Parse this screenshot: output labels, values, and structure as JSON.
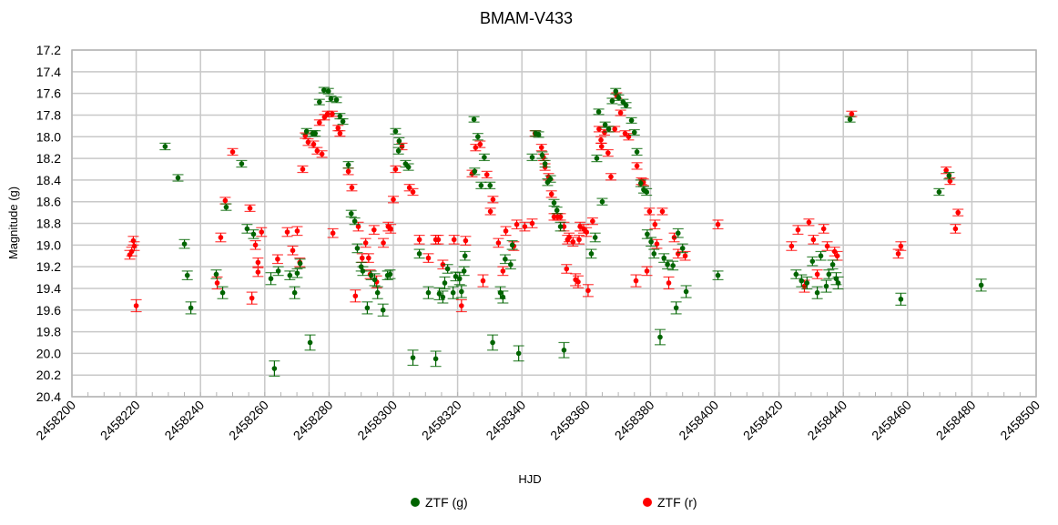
{
  "chart_data": {
    "type": "scatter",
    "title": "BMAM-V433",
    "xlabel": "HJD",
    "ylabel": "Magnitude (g)",
    "xlim": [
      2458200,
      2458500
    ],
    "ylim": [
      17.2,
      20.4
    ],
    "y_inverted": true,
    "x_major_step": 20,
    "x_minor_step": 5,
    "y_major_step": 0.2,
    "grid": true,
    "legend": "bottom-center",
    "x_base": 2458200,
    "x_ticks": [
      "2458200",
      "2458220",
      "2458240",
      "2458260",
      "2458280",
      "2458300",
      "2458320",
      "2458340",
      "2458360",
      "2458380",
      "2458400",
      "2458420",
      "2458440",
      "2458460",
      "2458480",
      "2458500"
    ],
    "y_ticks": [
      "17.2",
      "17.4",
      "17.6",
      "17.8",
      "18.0",
      "18.2",
      "18.4",
      "18.6",
      "18.8",
      "19.0",
      "19.2",
      "19.4",
      "19.6",
      "19.8",
      "20.0",
      "20.2",
      "20.4"
    ],
    "series": [
      {
        "name": "ZTF (g)",
        "color": "#006400",
        "points_note": "x = HJD - x_base, y = magnitude",
        "points": [
          [
            29.0,
            18.09
          ],
          [
            33.0,
            18.38
          ],
          [
            35.0,
            18.99
          ],
          [
            35.9,
            19.28
          ],
          [
            37.0,
            19.58
          ],
          [
            44.9,
            19.27
          ],
          [
            46.9,
            19.44
          ],
          [
            48.0,
            18.65
          ],
          [
            52.8,
            18.25
          ],
          [
            54.5,
            18.85
          ],
          [
            56.5,
            18.9
          ],
          [
            61.9,
            19.31
          ],
          [
            63.0,
            20.14
          ],
          [
            64.2,
            19.24
          ],
          [
            67.8,
            19.28
          ],
          [
            69.3,
            19.44
          ],
          [
            70.1,
            19.26
          ],
          [
            71.0,
            19.17
          ],
          [
            74.1,
            19.9
          ],
          [
            73.0,
            17.95
          ],
          [
            74.9,
            17.97
          ],
          [
            75.7,
            17.97
          ],
          [
            77.0,
            17.68
          ],
          [
            78.4,
            17.57
          ],
          [
            79.8,
            17.58
          ],
          [
            80.6,
            17.65
          ],
          [
            82.3,
            17.66
          ],
          [
            83.4,
            17.81
          ],
          [
            84.3,
            17.86
          ],
          [
            86.0,
            18.26
          ],
          [
            86.9,
            18.71
          ],
          [
            88.0,
            18.78
          ],
          [
            88.8,
            19.03
          ],
          [
            90.0,
            19.2
          ],
          [
            90.5,
            19.24
          ],
          [
            91.9,
            19.58
          ],
          [
            93.1,
            19.28
          ],
          [
            94.2,
            19.32
          ],
          [
            95.1,
            19.44
          ],
          [
            96.8,
            19.6
          ],
          [
            98.2,
            19.28
          ],
          [
            99.0,
            19.27
          ],
          [
            100.7,
            17.95
          ],
          [
            101.6,
            18.13
          ],
          [
            101.8,
            18.04
          ],
          [
            103.8,
            18.25
          ],
          [
            104.7,
            18.28
          ],
          [
            106.1,
            20.04
          ],
          [
            108.1,
            19.08
          ],
          [
            110.9,
            19.44
          ],
          [
            113.2,
            20.05
          ],
          [
            114.3,
            19.45
          ],
          [
            115.4,
            19.48
          ],
          [
            116.0,
            19.35
          ],
          [
            116.9,
            19.22
          ],
          [
            118.6,
            19.44
          ],
          [
            119.4,
            19.29
          ],
          [
            120.6,
            19.31
          ],
          [
            121.2,
            19.43
          ],
          [
            122.0,
            19.24
          ],
          [
            122.3,
            19.1
          ],
          [
            125.1,
            17.84
          ],
          [
            126.3,
            18.0
          ],
          [
            128.3,
            18.19
          ],
          [
            125.3,
            18.32
          ],
          [
            127.3,
            18.45
          ],
          [
            130.1,
            18.45
          ],
          [
            130.9,
            19.9
          ],
          [
            133.3,
            19.44
          ],
          [
            134.1,
            19.48
          ],
          [
            134.8,
            19.13
          ],
          [
            136.5,
            19.18
          ],
          [
            137.0,
            19.0
          ],
          [
            139.0,
            20.0
          ],
          [
            143.2,
            18.19
          ],
          [
            144.3,
            17.97
          ],
          [
            145.2,
            17.98
          ],
          [
            146.3,
            18.17
          ],
          [
            147.2,
            18.25
          ],
          [
            148.0,
            18.42
          ],
          [
            148.9,
            18.39
          ],
          [
            150.0,
            18.61
          ],
          [
            150.9,
            18.68
          ],
          [
            152.0,
            18.83
          ],
          [
            153.1,
            19.97
          ],
          [
            161.6,
            19.08
          ],
          [
            162.8,
            18.93
          ],
          [
            163.3,
            18.2
          ],
          [
            163.9,
            17.77
          ],
          [
            165.0,
            18.6
          ],
          [
            165.9,
            17.89
          ],
          [
            167.0,
            17.93
          ],
          [
            168.1,
            17.67
          ],
          [
            169.2,
            17.58
          ],
          [
            170.1,
            17.64
          ],
          [
            171.5,
            17.68
          ],
          [
            172.4,
            17.71
          ],
          [
            174.1,
            17.85
          ],
          [
            175.0,
            17.96
          ],
          [
            175.8,
            18.14
          ],
          [
            177.0,
            18.43
          ],
          [
            177.9,
            18.49
          ],
          [
            178.8,
            18.51
          ],
          [
            179.0,
            18.9
          ],
          [
            180.2,
            18.97
          ],
          [
            181.1,
            19.08
          ],
          [
            183.0,
            19.85
          ],
          [
            184.2,
            19.12
          ],
          [
            185.3,
            19.18
          ],
          [
            187.0,
            19.19
          ],
          [
            188.0,
            19.58
          ],
          [
            188.6,
            18.89
          ],
          [
            190.0,
            19.03
          ],
          [
            191.1,
            19.43
          ],
          [
            201.0,
            19.28
          ],
          [
            225.3,
            19.27
          ],
          [
            227.0,
            19.33
          ],
          [
            228.7,
            19.35
          ],
          [
            230.4,
            19.15
          ],
          [
            231.9,
            19.44
          ],
          [
            233.0,
            19.1
          ],
          [
            234.7,
            19.38
          ],
          [
            235.5,
            19.27
          ],
          [
            236.7,
            19.18
          ],
          [
            237.8,
            19.31
          ],
          [
            238.4,
            19.35
          ],
          [
            242.1,
            17.84
          ],
          [
            257.9,
            19.5
          ],
          [
            269.8,
            18.51
          ],
          [
            272.9,
            18.36
          ],
          [
            282.9,
            19.37
          ]
        ]
      },
      {
        "name": "ZTF (r)",
        "color": "#ff0000",
        "points_note": "x = HJD - x_base, y = magnitude",
        "points": [
          [
            18.0,
            19.09
          ],
          [
            18.6,
            19.06
          ],
          [
            19.4,
            19.01
          ],
          [
            19.1,
            18.96
          ],
          [
            20.0,
            19.56
          ],
          [
            46.3,
            18.93
          ],
          [
            45.2,
            19.35
          ],
          [
            47.7,
            18.59
          ],
          [
            50.0,
            18.14
          ],
          [
            55.4,
            18.66
          ],
          [
            56.0,
            19.49
          ],
          [
            57.1,
            19.0
          ],
          [
            57.9,
            19.25
          ],
          [
            57.9,
            19.16
          ],
          [
            59.0,
            18.88
          ],
          [
            64.0,
            19.13
          ],
          [
            67.0,
            18.88
          ],
          [
            68.7,
            19.05
          ],
          [
            70.1,
            18.87
          ],
          [
            70.9,
            19.16
          ],
          [
            71.8,
            18.3
          ],
          [
            72.6,
            17.99
          ],
          [
            73.5,
            18.05
          ],
          [
            75.2,
            18.07
          ],
          [
            76.3,
            18.13
          ],
          [
            77.8,
            18.16
          ],
          [
            77.0,
            17.87
          ],
          [
            78.6,
            17.82
          ],
          [
            79.5,
            17.79
          ],
          [
            81.0,
            17.79
          ],
          [
            82.8,
            17.92
          ],
          [
            83.4,
            17.97
          ],
          [
            81.2,
            18.89
          ],
          [
            86.0,
            18.32
          ],
          [
            87.1,
            18.47
          ],
          [
            88.2,
            19.47
          ],
          [
            89.1,
            18.83
          ],
          [
            90.3,
            19.12
          ],
          [
            91.4,
            18.98
          ],
          [
            92.3,
            19.12
          ],
          [
            92.8,
            19.27
          ],
          [
            94.0,
            18.86
          ],
          [
            94.8,
            19.34
          ],
          [
            96.9,
            18.98
          ],
          [
            98.4,
            18.83
          ],
          [
            99.2,
            18.85
          ],
          [
            100.0,
            18.58
          ],
          [
            100.7,
            18.3
          ],
          [
            102.7,
            18.09
          ],
          [
            105.0,
            18.47
          ],
          [
            106.1,
            18.51
          ],
          [
            108.1,
            18.95
          ],
          [
            110.9,
            19.12
          ],
          [
            113.2,
            18.95
          ],
          [
            114.0,
            18.95
          ],
          [
            115.4,
            19.18
          ],
          [
            118.9,
            18.95
          ],
          [
            121.2,
            19.56
          ],
          [
            122.5,
            18.96
          ],
          [
            124.5,
            18.34
          ],
          [
            125.6,
            18.1
          ],
          [
            127.0,
            18.07
          ],
          [
            127.9,
            19.33
          ],
          [
            129.1,
            18.35
          ],
          [
            130.2,
            18.69
          ],
          [
            131.0,
            18.58
          ],
          [
            132.7,
            18.98
          ],
          [
            134.1,
            19.24
          ],
          [
            135.0,
            18.87
          ],
          [
            137.5,
            19.01
          ],
          [
            138.4,
            18.81
          ],
          [
            140.9,
            18.83
          ],
          [
            143.2,
            18.8
          ],
          [
            144.1,
            17.97
          ],
          [
            146.1,
            18.1
          ],
          [
            146.7,
            18.19
          ],
          [
            147.2,
            18.28
          ],
          [
            148.3,
            18.37
          ],
          [
            149.2,
            18.53
          ],
          [
            150.0,
            18.74
          ],
          [
            151.1,
            18.74
          ],
          [
            152.0,
            18.74
          ],
          [
            153.1,
            18.83
          ],
          [
            153.9,
            19.22
          ],
          [
            154.2,
            18.95
          ],
          [
            154.7,
            18.93
          ],
          [
            155.9,
            18.97
          ],
          [
            156.7,
            19.32
          ],
          [
            157.5,
            19.34
          ],
          [
            157.8,
            18.95
          ],
          [
            158.1,
            18.83
          ],
          [
            159.2,
            18.85
          ],
          [
            160.1,
            18.88
          ],
          [
            160.6,
            19.42
          ],
          [
            162.0,
            18.78
          ],
          [
            164.0,
            17.93
          ],
          [
            164.6,
            18.03
          ],
          [
            164.8,
            18.09
          ],
          [
            165.7,
            17.96
          ],
          [
            166.8,
            18.15
          ],
          [
            167.7,
            18.37
          ],
          [
            168.9,
            17.93
          ],
          [
            169.5,
            17.62
          ],
          [
            170.7,
            17.78
          ],
          [
            172.1,
            17.97
          ],
          [
            173.2,
            18.0
          ],
          [
            175.8,
            18.27
          ],
          [
            177.2,
            18.41
          ],
          [
            177.8,
            18.42
          ],
          [
            175.5,
            19.33
          ],
          [
            178.9,
            19.24
          ],
          [
            179.7,
            18.69
          ],
          [
            181.4,
            18.81
          ],
          [
            182.0,
            18.99
          ],
          [
            183.7,
            18.69
          ],
          [
            185.7,
            19.35
          ],
          [
            187.4,
            18.93
          ],
          [
            188.6,
            19.08
          ],
          [
            190.8,
            19.1
          ],
          [
            201.0,
            18.81
          ],
          [
            223.9,
            19.01
          ],
          [
            225.9,
            18.86
          ],
          [
            227.9,
            19.38
          ],
          [
            229.3,
            18.79
          ],
          [
            230.7,
            18.95
          ],
          [
            231.9,
            19.27
          ],
          [
            233.9,
            18.85
          ],
          [
            235.0,
            19.01
          ],
          [
            237.3,
            19.06
          ],
          [
            238.1,
            19.1
          ],
          [
            242.6,
            17.79
          ],
          [
            257.1,
            19.08
          ],
          [
            257.9,
            19.01
          ],
          [
            272.0,
            18.31
          ],
          [
            273.2,
            18.41
          ],
          [
            274.9,
            18.85
          ],
          [
            275.7,
            18.7
          ]
        ]
      }
    ]
  }
}
